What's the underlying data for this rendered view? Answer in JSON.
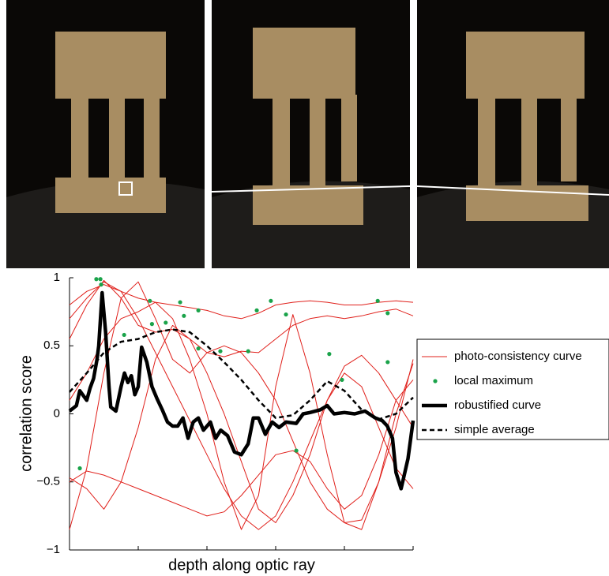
{
  "chart_data": {
    "type": "line",
    "ylabel": "correlation score",
    "xlabel": "depth along optic ray",
    "xlim": [
      0,
      100
    ],
    "xticks": [
      0,
      20,
      40,
      60,
      80,
      100
    ],
    "ylim": [
      -1,
      1
    ],
    "yticks": [
      {
        "value": -1,
        "label": "−1"
      },
      {
        "value": -0.5,
        "label": "−0.5"
      },
      0,
      0.5,
      1
    ],
    "series": [
      {
        "name": "photo-consistency curve",
        "color": "#e0201b",
        "style": "thin",
        "x": [
          0,
          5,
          10,
          15,
          20,
          25,
          30,
          35,
          40,
          45,
          50,
          55,
          60,
          65,
          70,
          75,
          80,
          85,
          90,
          95,
          100
        ],
        "curves": [
          [
            0.7,
            0.85,
            0.97,
            0.9,
            0.7,
            0.45,
            0.2,
            -0.05,
            -0.3,
            -0.55,
            -0.75,
            -0.85,
            -0.75,
            -0.5,
            -0.2,
            0.1,
            0.35,
            0.43,
            0.3,
            0.1,
            -0.1
          ],
          [
            -0.85,
            -0.4,
            0.3,
            0.85,
            0.97,
            0.7,
            0.4,
            0.3,
            0.45,
            0.5,
            0.45,
            0.3,
            0.1,
            -0.2,
            -0.5,
            -0.7,
            -0.8,
            -0.78,
            -0.5,
            -0.1,
            0.4
          ],
          [
            0.8,
            0.9,
            0.95,
            0.9,
            0.85,
            0.82,
            0.8,
            0.78,
            0.76,
            0.72,
            0.7,
            0.74,
            0.8,
            0.82,
            0.83,
            0.82,
            0.8,
            0.8,
            0.82,
            0.83,
            0.82
          ],
          [
            -0.47,
            -0.55,
            -0.7,
            -0.5,
            -0.1,
            0.4,
            0.65,
            0.55,
            0.3,
            0.0,
            -0.35,
            -0.7,
            -0.8,
            -0.6,
            -0.3,
            0.1,
            0.3,
            0.2,
            -0.1,
            -0.4,
            -0.55
          ],
          [
            0.1,
            0.3,
            0.55,
            0.7,
            0.75,
            0.82,
            0.7,
            0.4,
            0.0,
            -0.5,
            -0.85,
            -0.6,
            0.2,
            0.73,
            0.3,
            -0.3,
            -0.8,
            -0.85,
            -0.5,
            0.0,
            0.37
          ],
          [
            0.55,
            0.8,
            0.98,
            0.85,
            0.65,
            0.6,
            0.62,
            0.55,
            0.45,
            0.42,
            0.46,
            0.45,
            0.55,
            0.65,
            0.7,
            0.72,
            0.7,
            0.72,
            0.75,
            0.77,
            0.72
          ],
          [
            -0.5,
            -0.42,
            -0.45,
            -0.5,
            -0.55,
            -0.6,
            -0.65,
            -0.7,
            -0.75,
            -0.72,
            -0.6,
            -0.45,
            -0.3,
            -0.27,
            -0.35,
            -0.55,
            -0.7,
            -0.6,
            -0.3,
            0.1,
            0.25
          ]
        ]
      },
      {
        "name": "local maximum",
        "color": "#1aa34a",
        "style": "dots",
        "x": [
          7.8,
          9,
          9.2,
          15.9,
          23.4,
          24,
          28,
          32.2,
          33.3,
          37.5,
          37.5,
          43.9,
          52,
          54.5,
          58.6,
          63,
          66,
          75.6,
          79.3,
          89.7,
          92.6,
          92.6,
          3
        ],
        "values": [
          0.99,
          0.99,
          0.95,
          0.58,
          0.83,
          0.66,
          0.67,
          0.82,
          0.72,
          0.76,
          0.48,
          0.46,
          0.46,
          0.76,
          0.83,
          0.73,
          -0.27,
          0.44,
          0.25,
          0.83,
          0.74,
          0.38,
          -0.4
        ]
      },
      {
        "name": "robustified curve",
        "color": "#000000",
        "style": "thick",
        "x": [
          0,
          2,
          3,
          5,
          6,
          7,
          8,
          8.5,
          9.5,
          10.5,
          11.5,
          12,
          13.5,
          15,
          16,
          17,
          18,
          19,
          20,
          21,
          22.5,
          24,
          25.5,
          27,
          28.5,
          30,
          31.5,
          33,
          34.5,
          36,
          37.5,
          39,
          41,
          42.5,
          44,
          46,
          48,
          50,
          52,
          53.5,
          55,
          57,
          59,
          61,
          63,
          66,
          68,
          70,
          73,
          75,
          77,
          80,
          83,
          86,
          89,
          91,
          92.5,
          94,
          95,
          96.5,
          98.5,
          100
        ],
        "values": [
          0.02,
          0.06,
          0.17,
          0.1,
          0.19,
          0.26,
          0.4,
          0.5,
          0.89,
          0.6,
          0.2,
          0.05,
          0.02,
          0.2,
          0.3,
          0.23,
          0.28,
          0.14,
          0.2,
          0.49,
          0.38,
          0.2,
          0.11,
          0.03,
          -0.06,
          -0.09,
          -0.09,
          -0.03,
          -0.18,
          -0.06,
          -0.03,
          -0.12,
          -0.06,
          -0.18,
          -0.12,
          -0.16,
          -0.28,
          -0.3,
          -0.22,
          -0.03,
          -0.03,
          -0.15,
          -0.06,
          -0.1,
          -0.06,
          -0.07,
          0.0,
          0.01,
          0.03,
          0.06,
          0.0,
          0.01,
          0.0,
          0.02,
          -0.03,
          -0.05,
          -0.09,
          -0.18,
          -0.43,
          -0.55,
          -0.33,
          -0.05
        ]
      },
      {
        "name": "simple average",
        "color": "#000000",
        "style": "dashed",
        "x": [
          0,
          5,
          10,
          15,
          20,
          25,
          30,
          35,
          40,
          45,
          50,
          55,
          60,
          65,
          70,
          75,
          80,
          85,
          90,
          95,
          100
        ],
        "values": [
          0.16,
          0.3,
          0.45,
          0.53,
          0.55,
          0.6,
          0.62,
          0.6,
          0.5,
          0.38,
          0.25,
          0.1,
          -0.03,
          -0.01,
          0.1,
          0.24,
          0.17,
          0.03,
          -0.04,
          0.0,
          0.12
        ]
      }
    ]
  }
}
